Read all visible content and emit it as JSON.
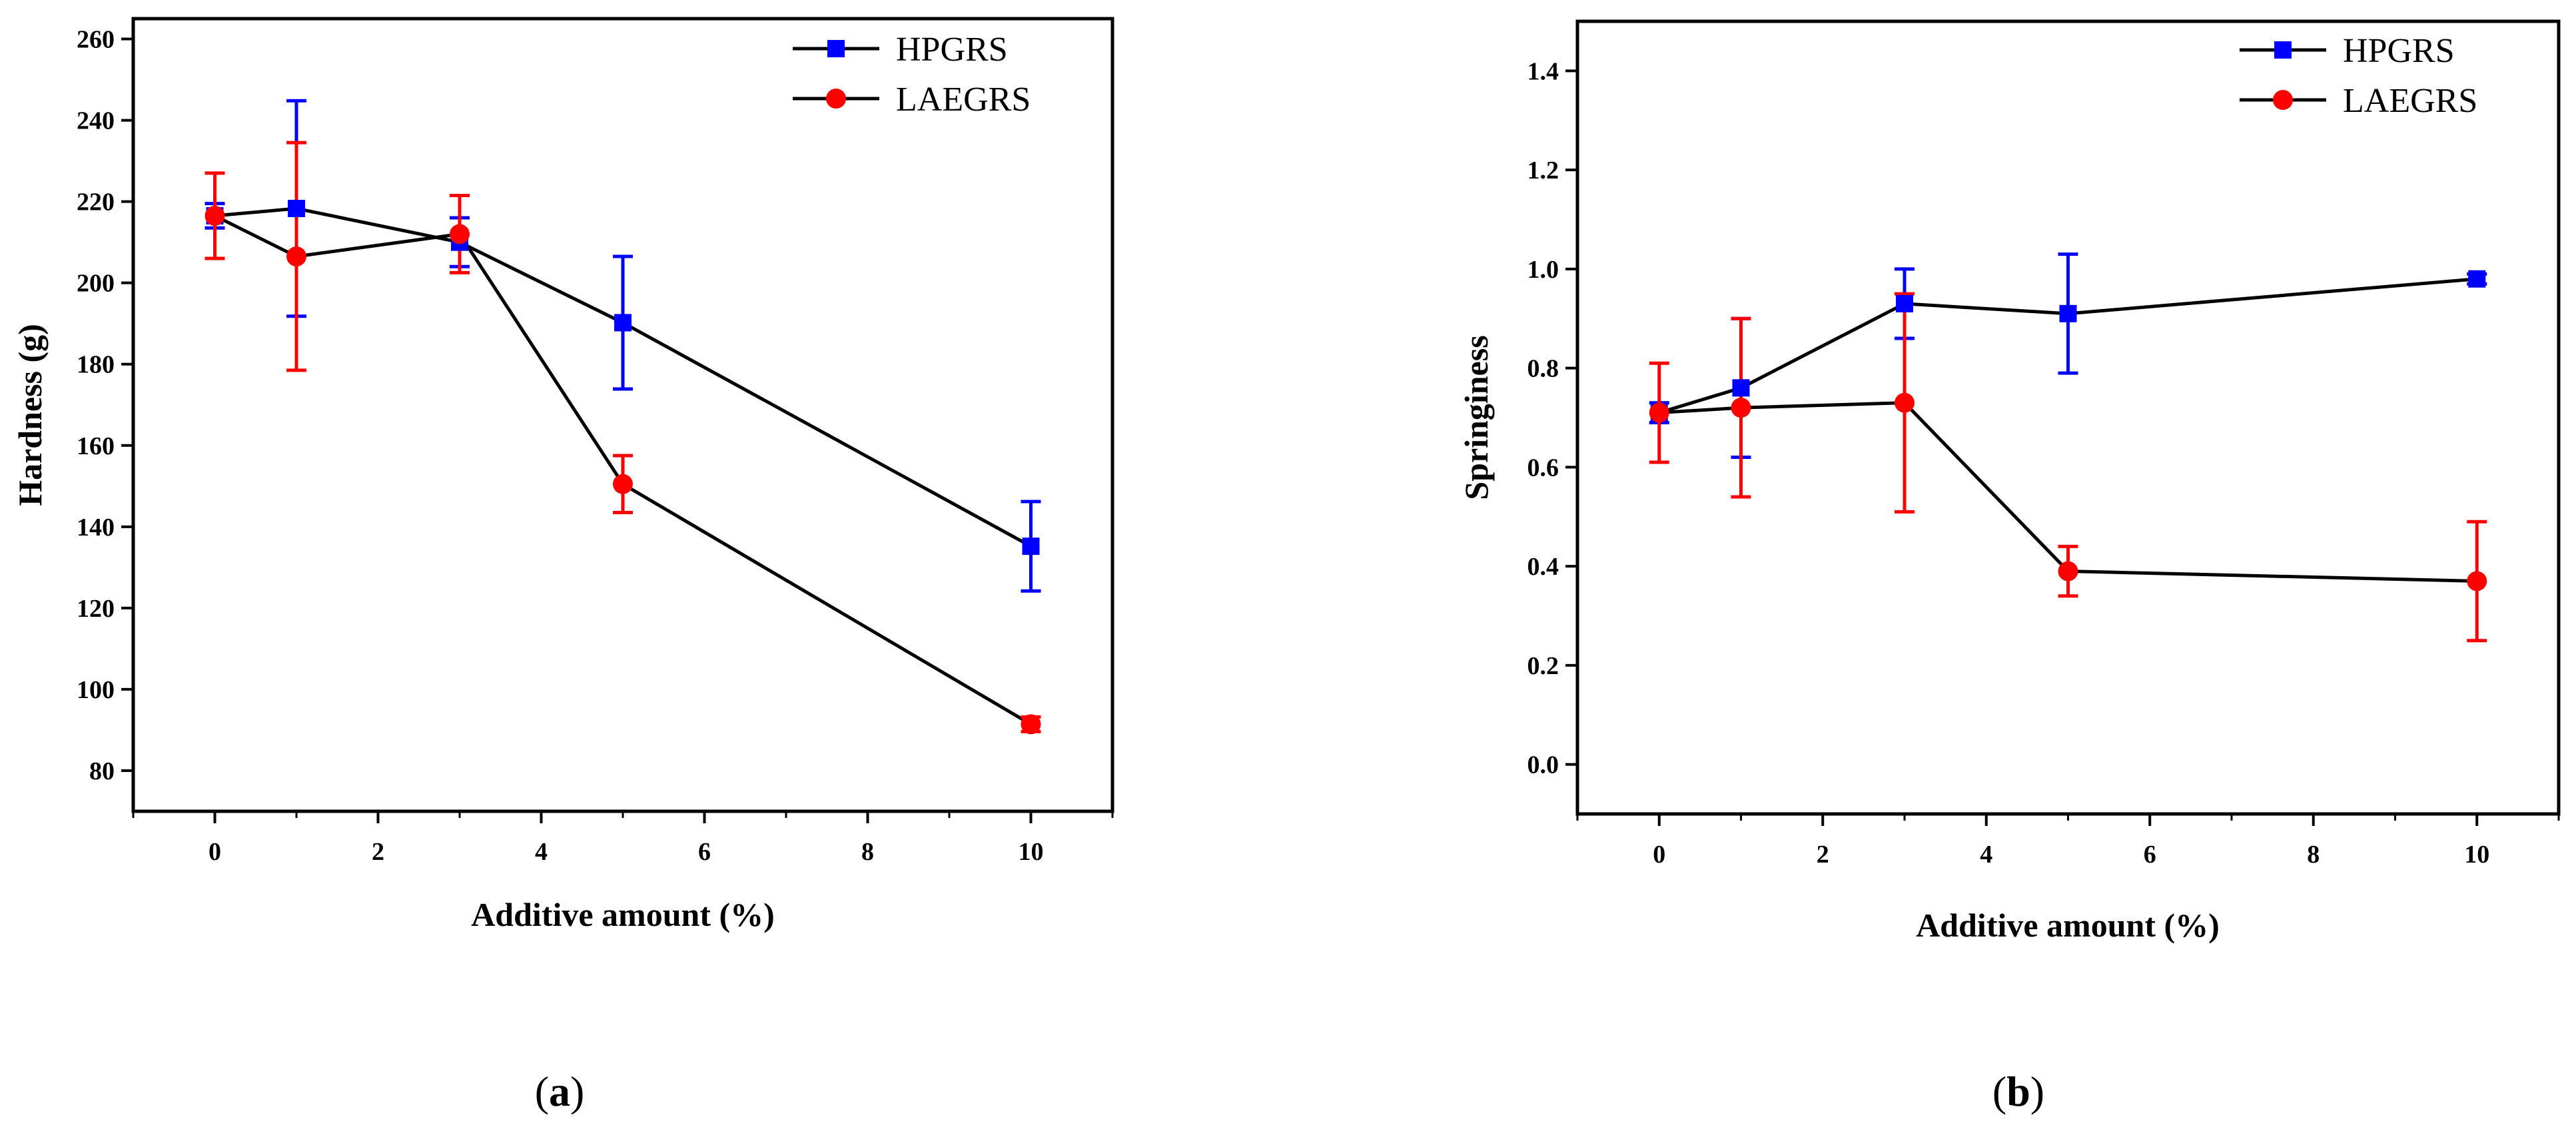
{
  "chart_data": [
    {
      "type": "line",
      "panel_label": "(a)",
      "panel_label_parts": [
        "(",
        "a",
        ")"
      ],
      "xlabel": "Additive amount (%)",
      "ylabel": "Hardness (g)",
      "xlim": [
        -1,
        11
      ],
      "ylim": [
        70,
        265
      ],
      "xticks": [
        0,
        2,
        4,
        6,
        8,
        10
      ],
      "yticks": [
        80,
        100,
        120,
        140,
        160,
        180,
        200,
        220,
        240,
        260
      ],
      "ytick_decimals": 0,
      "legend_position": "top-right",
      "series": [
        {
          "name": "HPGRS",
          "color": "#0000ff",
          "marker": "square",
          "x": [
            0,
            1,
            3,
            5,
            10
          ],
          "y": [
            216.5,
            218.3,
            210,
            190.2,
            135.2
          ],
          "yerr": [
            3,
            26.5,
            6,
            16.3,
            11
          ]
        },
        {
          "name": "LAEGRS",
          "color": "#ff0000",
          "marker": "circle",
          "x": [
            0,
            1,
            3,
            5,
            10
          ],
          "y": [
            216.5,
            206.5,
            212,
            150.5,
            91.4
          ],
          "yerr": [
            10.5,
            28,
            9.5,
            7,
            1.8
          ]
        }
      ]
    },
    {
      "type": "line",
      "panel_label": "(b)",
      "panel_label_parts": [
        "(",
        "b",
        ")"
      ],
      "xlabel": "Additive amount (%)",
      "ylabel": "Springiness",
      "xlim": [
        -1,
        11
      ],
      "ylim": [
        -0.1,
        1.5
      ],
      "xticks": [
        0,
        2,
        4,
        6,
        8,
        10
      ],
      "yticks": [
        0,
        0.2,
        0.4,
        0.6,
        0.8,
        1.0,
        1.2,
        1.4
      ],
      "ytick_decimals": 1,
      "legend_position": "top-right",
      "series": [
        {
          "name": "HPGRS",
          "color": "#0000ff",
          "marker": "square",
          "x": [
            0,
            1,
            3,
            5,
            10
          ],
          "y": [
            0.71,
            0.76,
            0.93,
            0.91,
            0.98
          ],
          "yerr": [
            0.02,
            0.14,
            0.07,
            0.12,
            0.01
          ]
        },
        {
          "name": "LAEGRS",
          "color": "#ff0000",
          "marker": "circle",
          "x": [
            0,
            1,
            3,
            5,
            10
          ],
          "y": [
            0.71,
            0.72,
            0.73,
            0.39,
            0.37
          ],
          "yerr": [
            0.1,
            0.18,
            0.22,
            0.05,
            0.12
          ]
        }
      ]
    }
  ]
}
